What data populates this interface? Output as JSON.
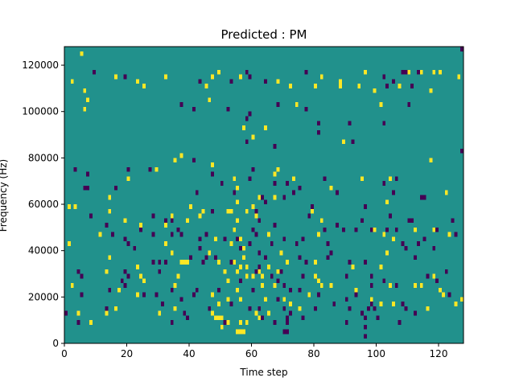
{
  "chart_data": {
    "type": "heatmap",
    "title": "Predicted : PM",
    "xlabel": "Time step",
    "ylabel": "Frequency (Hz)",
    "xlim": [
      0,
      128
    ],
    "ylim": [
      0,
      128000
    ],
    "xticks": [
      0,
      20,
      40,
      60,
      80,
      100,
      120
    ],
    "xtick_labels": [
      "0",
      "20",
      "40",
      "60",
      "80",
      "100",
      "120"
    ],
    "yticks": [
      0,
      20000,
      40000,
      60000,
      80000,
      100000,
      120000
    ],
    "ytick_labels": [
      "0",
      "20000",
      "40000",
      "60000",
      "80000",
      "100000",
      "120000"
    ],
    "colormap": "viridis",
    "colors": {
      "background": "#21918c",
      "low": "#440154",
      "high": "#fde725"
    },
    "value_levels": {
      "background": 0,
      "low": -1,
      "high": 1
    },
    "cell_size": [
      1,
      2000
    ],
    "high_cells": [
      [
        6,
        126000
      ],
      [
        3,
        114000
      ],
      [
        7,
        110000
      ],
      [
        8,
        106000
      ],
      [
        7,
        102000
      ],
      [
        17,
        116000
      ],
      [
        24,
        114000
      ],
      [
        26,
        112000
      ],
      [
        33,
        116000
      ],
      [
        46,
        112000
      ],
      [
        48,
        116000
      ],
      [
        47,
        106000
      ],
      [
        50,
        118000
      ],
      [
        57,
        116000
      ],
      [
        69,
        114000
      ],
      [
        75,
        104000
      ],
      [
        73,
        112000
      ],
      [
        81,
        112000
      ],
      [
        83,
        116000
      ],
      [
        89,
        112000
      ],
      [
        89,
        114000
      ],
      [
        95,
        112000
      ],
      [
        97,
        118000
      ],
      [
        100,
        110000
      ],
      [
        102,
        104000
      ],
      [
        108,
        112000
      ],
      [
        111,
        118000
      ],
      [
        115,
        118000
      ],
      [
        118,
        110000
      ],
      [
        119,
        118000
      ],
      [
        121,
        118000
      ],
      [
        127,
        116000
      ],
      [
        65,
        94000
      ],
      [
        61,
        90000
      ],
      [
        58,
        94000
      ],
      [
        38,
        82000
      ],
      [
        48,
        78000
      ],
      [
        90,
        88000
      ],
      [
        118,
        80000
      ],
      [
        21,
        72000
      ],
      [
        30,
        76000
      ],
      [
        36,
        80000
      ],
      [
        55,
        72000
      ],
      [
        56,
        68000
      ],
      [
        56,
        62000
      ],
      [
        53,
        58000
      ],
      [
        59,
        58000
      ],
      [
        68,
        74000
      ],
      [
        68,
        64000
      ],
      [
        69,
        76000
      ],
      [
        63,
        64000
      ],
      [
        74,
        72000
      ],
      [
        86,
        68000
      ],
      [
        96,
        72000
      ],
      [
        105,
        72000
      ],
      [
        104,
        62000
      ],
      [
        123,
        66000
      ],
      [
        2,
        60000
      ],
      [
        4,
        60000
      ],
      [
        15,
        64000
      ],
      [
        15,
        58000
      ],
      [
        20,
        54000
      ],
      [
        25,
        52000
      ],
      [
        33,
        52000
      ],
      [
        35,
        56000
      ],
      [
        40,
        54000
      ],
      [
        41,
        60000
      ],
      [
        45,
        58000
      ],
      [
        44,
        56000
      ],
      [
        54,
        58000
      ],
      [
        55,
        50000
      ],
      [
        56,
        54000
      ],
      [
        57,
        46000
      ],
      [
        58,
        42000
      ],
      [
        58,
        38000
      ],
      [
        59,
        34000
      ],
      [
        61,
        60000
      ],
      [
        62,
        56000
      ],
      [
        66,
        48000
      ],
      [
        80,
        58000
      ],
      [
        83,
        54000
      ],
      [
        82,
        48000
      ],
      [
        100,
        50000
      ],
      [
        103,
        48000
      ],
      [
        106,
        46000
      ],
      [
        113,
        50000
      ],
      [
        119,
        50000
      ],
      [
        124,
        48000
      ],
      [
        2,
        44000
      ],
      [
        12,
        48000
      ],
      [
        33,
        44000
      ],
      [
        35,
        40000
      ],
      [
        47,
        40000
      ],
      [
        49,
        46000
      ],
      [
        50,
        36000
      ],
      [
        54,
        44000
      ],
      [
        55,
        36000
      ],
      [
        56,
        32000
      ],
      [
        59,
        30000
      ],
      [
        70,
        40000
      ],
      [
        72,
        36000
      ],
      [
        81,
        36000
      ],
      [
        93,
        34000
      ],
      [
        102,
        34000
      ],
      [
        104,
        40000
      ],
      [
        15,
        38000
      ],
      [
        38,
        36000
      ],
      [
        39,
        36000
      ],
      [
        40,
        36000
      ],
      [
        57,
        34000
      ],
      [
        14,
        32000
      ],
      [
        24,
        34000
      ],
      [
        25,
        30000
      ],
      [
        26,
        28000
      ],
      [
        37,
        30000
      ],
      [
        36,
        26000
      ],
      [
        52,
        32000
      ],
      [
        53,
        28000
      ],
      [
        53,
        20000
      ],
      [
        56,
        24000
      ],
      [
        57,
        20000
      ],
      [
        61,
        30000
      ],
      [
        63,
        32000
      ],
      [
        64,
        30000
      ],
      [
        66,
        34000
      ],
      [
        64,
        26000
      ],
      [
        68,
        26000
      ],
      [
        69,
        32000
      ],
      [
        81,
        30000
      ],
      [
        82,
        28000
      ],
      [
        83,
        26000
      ],
      [
        86,
        26000
      ],
      [
        119,
        30000
      ],
      [
        121,
        24000
      ],
      [
        128,
        20000
      ],
      [
        3,
        26000
      ],
      [
        18,
        24000
      ],
      [
        24,
        22000
      ],
      [
        48,
        22000
      ],
      [
        50,
        18000
      ],
      [
        65,
        20000
      ],
      [
        62,
        14000
      ],
      [
        63,
        12000
      ],
      [
        73,
        18000
      ],
      [
        79,
        22000
      ],
      [
        94,
        24000
      ],
      [
        99,
        20000
      ],
      [
        5,
        14000
      ],
      [
        9,
        10000
      ],
      [
        14,
        14000
      ],
      [
        17,
        16000
      ],
      [
        31,
        14000
      ],
      [
        36,
        16000
      ],
      [
        48,
        14000
      ],
      [
        49,
        12000
      ],
      [
        50,
        12000
      ],
      [
        51,
        12000
      ],
      [
        53,
        10000
      ],
      [
        51,
        8000
      ],
      [
        57,
        10000
      ],
      [
        59,
        10000
      ],
      [
        66,
        14000
      ],
      [
        71,
        20000
      ],
      [
        76,
        16000
      ],
      [
        102,
        18000
      ],
      [
        105,
        26000
      ],
      [
        106,
        18000
      ],
      [
        113,
        26000
      ],
      [
        115,
        26000
      ],
      [
        117,
        16000
      ],
      [
        122,
        22000
      ],
      [
        126,
        18000
      ],
      [
        56,
        6000
      ],
      [
        57,
        6000
      ],
      [
        58,
        6000
      ]
    ],
    "low_cells": [
      [
        128,
        128000
      ],
      [
        10,
        118000
      ],
      [
        20,
        116000
      ],
      [
        44,
        114000
      ],
      [
        54,
        114000
      ],
      [
        59,
        118000
      ],
      [
        60,
        116000
      ],
      [
        65,
        114000
      ],
      [
        78,
        118000
      ],
      [
        104,
        112000
      ],
      [
        103,
        116000
      ],
      [
        109,
        118000
      ],
      [
        110,
        118000
      ],
      [
        114,
        118000
      ],
      [
        112,
        112000
      ],
      [
        106,
        114000
      ],
      [
        111,
        104000
      ],
      [
        38,
        104000
      ],
      [
        42,
        102000
      ],
      [
        53,
        102000
      ],
      [
        59,
        98000
      ],
      [
        60,
        100000
      ],
      [
        69,
        104000
      ],
      [
        78,
        102000
      ],
      [
        82,
        96000
      ],
      [
        82,
        92000
      ],
      [
        92,
        96000
      ],
      [
        93,
        88000
      ],
      [
        59,
        88000
      ],
      [
        68,
        86000
      ],
      [
        103,
        96000
      ],
      [
        128,
        84000
      ],
      [
        4,
        76000
      ],
      [
        7,
        68000
      ],
      [
        8,
        68000
      ],
      [
        8,
        74000
      ],
      [
        21,
        76000
      ],
      [
        28,
        76000
      ],
      [
        42,
        80000
      ],
      [
        43,
        66000
      ],
      [
        48,
        74000
      ],
      [
        51,
        70000
      ],
      [
        55,
        66000
      ],
      [
        60,
        72000
      ],
      [
        61,
        76000
      ],
      [
        68,
        70000
      ],
      [
        72,
        70000
      ],
      [
        76,
        68000
      ],
      [
        84,
        72000
      ],
      [
        88,
        66000
      ],
      [
        103,
        70000
      ],
      [
        106,
        66000
      ],
      [
        107,
        72000
      ],
      [
        115,
        64000
      ],
      [
        116,
        64000
      ],
      [
        17,
        68000
      ],
      [
        62,
        58000
      ],
      [
        63,
        54000
      ],
      [
        64,
        64000
      ],
      [
        65,
        62000
      ],
      [
        71,
        64000
      ],
      [
        74,
        66000
      ],
      [
        79,
        56000
      ],
      [
        80,
        60000
      ],
      [
        88,
        52000
      ],
      [
        90,
        50000
      ],
      [
        94,
        50000
      ],
      [
        96,
        54000
      ],
      [
        97,
        60000
      ],
      [
        99,
        50000
      ],
      [
        104,
        50000
      ],
      [
        105,
        56000
      ],
      [
        107,
        50000
      ],
      [
        109,
        44000
      ],
      [
        111,
        54000
      ],
      [
        112,
        54000
      ],
      [
        114,
        44000
      ],
      [
        116,
        46000
      ],
      [
        120,
        50000
      ],
      [
        125,
        54000
      ],
      [
        126,
        48000
      ],
      [
        9,
        56000
      ],
      [
        14,
        52000
      ],
      [
        16,
        48000
      ],
      [
        20,
        46000
      ],
      [
        23,
        42000
      ],
      [
        25,
        50000
      ],
      [
        29,
        56000
      ],
      [
        29,
        48000
      ],
      [
        33,
        54000
      ],
      [
        33,
        36000
      ],
      [
        35,
        54000
      ],
      [
        35,
        48000
      ],
      [
        37,
        50000
      ],
      [
        38,
        48000
      ],
      [
        44,
        42000
      ],
      [
        44,
        46000
      ],
      [
        46,
        48000
      ],
      [
        48,
        58000
      ],
      [
        52,
        46000
      ],
      [
        56,
        46000
      ],
      [
        57,
        42000
      ],
      [
        60,
        44000
      ],
      [
        61,
        50000
      ],
      [
        62,
        48000
      ],
      [
        67,
        44000
      ],
      [
        68,
        52000
      ],
      [
        71,
        46000
      ],
      [
        75,
        44000
      ],
      [
        76,
        38000
      ],
      [
        77,
        46000
      ],
      [
        84,
        50000
      ],
      [
        78,
        36000
      ],
      [
        85,
        44000
      ],
      [
        85,
        38000
      ],
      [
        86,
        40000
      ],
      [
        91,
        30000
      ],
      [
        92,
        36000
      ],
      [
        97,
        36000
      ],
      [
        99,
        30000
      ],
      [
        103,
        28000
      ],
      [
        110,
        42000
      ],
      [
        113,
        38000
      ],
      [
        119,
        42000
      ],
      [
        120,
        28000
      ],
      [
        123,
        32000
      ],
      [
        21,
        44000
      ],
      [
        29,
        36000
      ],
      [
        31,
        36000
      ],
      [
        41,
        38000
      ],
      [
        45,
        36000
      ],
      [
        46,
        38000
      ],
      [
        49,
        38000
      ],
      [
        54,
        36000
      ],
      [
        57,
        28000
      ],
      [
        61,
        24000
      ],
      [
        62,
        32000
      ],
      [
        63,
        34000
      ],
      [
        63,
        40000
      ],
      [
        65,
        38000
      ],
      [
        67,
        30000
      ],
      [
        69,
        28000
      ],
      [
        70,
        32000
      ],
      [
        71,
        26000
      ],
      [
        73,
        24000
      ],
      [
        77,
        30000
      ],
      [
        82,
        22000
      ],
      [
        94,
        22000
      ],
      [
        99,
        26000
      ],
      [
        107,
        26000
      ],
      [
        117,
        30000
      ],
      [
        124,
        22000
      ],
      [
        5,
        32000
      ],
      [
        6,
        30000
      ],
      [
        6,
        22000
      ],
      [
        15,
        24000
      ],
      [
        19,
        28000
      ],
      [
        20,
        32000
      ],
      [
        20,
        26000
      ],
      [
        21,
        30000
      ],
      [
        26,
        22000
      ],
      [
        30,
        22000
      ],
      [
        31,
        32000
      ],
      [
        35,
        24000
      ],
      [
        38,
        20000
      ],
      [
        42,
        22000
      ],
      [
        43,
        24000
      ],
      [
        50,
        24000
      ],
      [
        54,
        18000
      ],
      [
        63,
        16000
      ],
      [
        64,
        12000
      ],
      [
        69,
        20000
      ],
      [
        71,
        16000
      ],
      [
        72,
        10000
      ],
      [
        76,
        24000
      ],
      [
        87,
        18000
      ],
      [
        91,
        20000
      ],
      [
        92,
        16000
      ],
      [
        96,
        14000
      ],
      [
        97,
        12000
      ],
      [
        101,
        12000
      ],
      [
        99,
        18000
      ],
      [
        100,
        16000
      ],
      [
        109,
        18000
      ],
      [
        113,
        14000
      ],
      [
        1,
        14000
      ],
      [
        5,
        10000
      ],
      [
        14,
        16000
      ],
      [
        32,
        18000
      ],
      [
        35,
        10000
      ],
      [
        39,
        14000
      ],
      [
        40,
        12000
      ],
      [
        47,
        16000
      ],
      [
        52,
        10000
      ],
      [
        60,
        16000
      ],
      [
        68,
        10000
      ],
      [
        72,
        12000
      ],
      [
        73,
        14000
      ],
      [
        77,
        12000
      ],
      [
        81,
        16000
      ],
      [
        91,
        10000
      ],
      [
        97,
        8000
      ],
      [
        98,
        16000
      ],
      [
        108,
        10000
      ],
      [
        110,
        16000
      ],
      [
        71,
        6000
      ],
      [
        72,
        6000
      ],
      [
        97,
        4000
      ]
    ]
  }
}
